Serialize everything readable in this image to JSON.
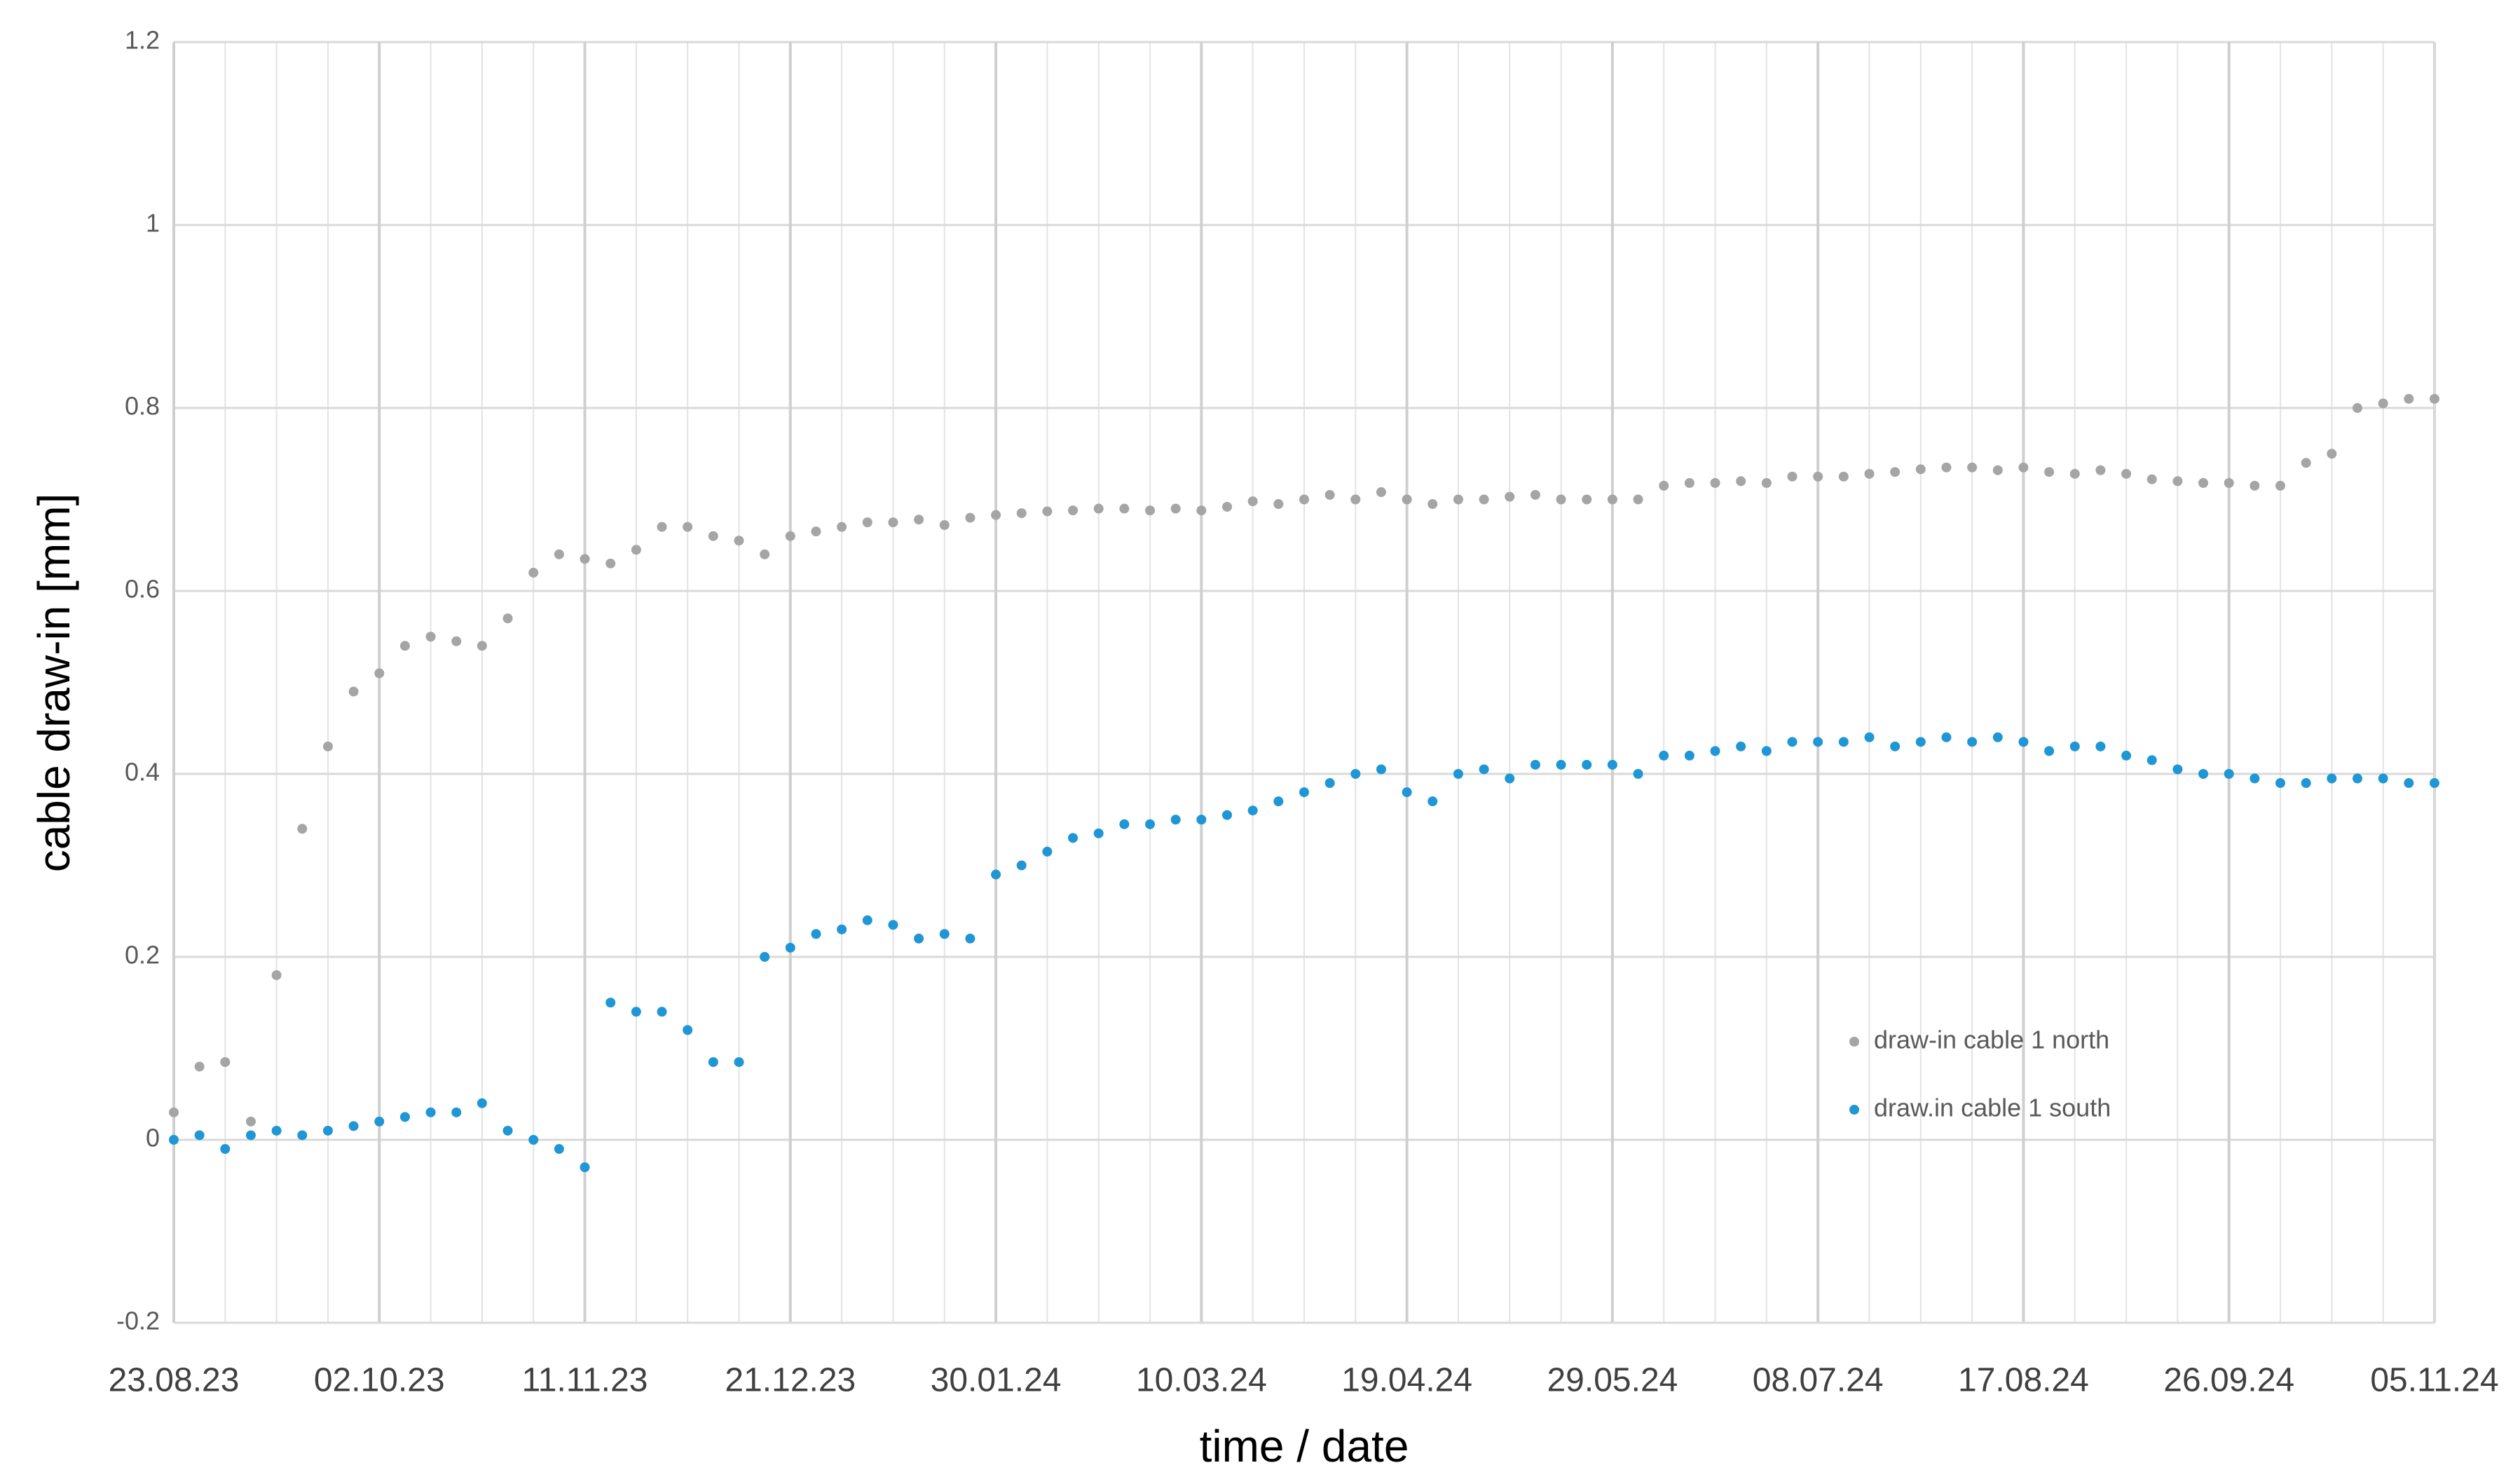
{
  "chart_data": {
    "type": "scatter",
    "x_label": "time / date",
    "y_label": "cable draw-in [mm]",
    "x": [
      "2023-08-23",
      "2023-08-28",
      "2023-09-02",
      "2023-09-07",
      "2023-09-12",
      "2023-09-17",
      "2023-09-22",
      "2023-09-27",
      "2023-10-02",
      "2023-10-07",
      "2023-10-12",
      "2023-10-17",
      "2023-10-22",
      "2023-10-27",
      "2023-11-01",
      "2023-11-06",
      "2023-11-11",
      "2023-11-16",
      "2023-11-21",
      "2023-11-26",
      "2023-12-01",
      "2023-12-06",
      "2023-12-11",
      "2023-12-16",
      "2023-12-21",
      "2023-12-26",
      "2023-12-31",
      "2024-01-05",
      "2024-01-10",
      "2024-01-15",
      "2024-01-20",
      "2024-01-25",
      "2024-01-30",
      "2024-02-04",
      "2024-02-09",
      "2024-02-14",
      "2024-02-19",
      "2024-02-24",
      "2024-02-29",
      "2024-03-05",
      "2024-03-10",
      "2024-03-15",
      "2024-03-20",
      "2024-03-25",
      "2024-03-30",
      "2024-04-04",
      "2024-04-09",
      "2024-04-14",
      "2024-04-19",
      "2024-04-24",
      "2024-04-29",
      "2024-05-04",
      "2024-05-09",
      "2024-05-14",
      "2024-05-19",
      "2024-05-24",
      "2024-05-29",
      "2024-06-03",
      "2024-06-08",
      "2024-06-13",
      "2024-06-18",
      "2024-06-23",
      "2024-06-28",
      "2024-07-03",
      "2024-07-08",
      "2024-07-13",
      "2024-07-18",
      "2024-07-23",
      "2024-07-28",
      "2024-08-02",
      "2024-08-07",
      "2024-08-12",
      "2024-08-17",
      "2024-08-22",
      "2024-08-27",
      "2024-09-01",
      "2024-09-06",
      "2024-09-11",
      "2024-09-16",
      "2024-09-21",
      "2024-09-26",
      "2024-10-01",
      "2024-10-06",
      "2024-10-11",
      "2024-10-16",
      "2024-10-21",
      "2024-10-26",
      "2024-10-31",
      "2024-11-05"
    ],
    "series": [
      {
        "name": "draw-in cable 1 north",
        "color": "#a5a5a5",
        "values": [
          0.03,
          0.08,
          0.085,
          0.02,
          0.18,
          0.34,
          0.43,
          0.49,
          0.51,
          0.54,
          0.55,
          0.545,
          0.54,
          0.57,
          0.62,
          0.64,
          0.635,
          0.63,
          0.645,
          0.67,
          0.67,
          0.66,
          0.655,
          0.64,
          0.66,
          0.665,
          0.67,
          0.675,
          0.675,
          0.678,
          0.672,
          0.68,
          0.683,
          0.685,
          0.687,
          0.688,
          0.69,
          0.69,
          0.688,
          0.69,
          0.688,
          0.692,
          0.698,
          0.695,
          0.7,
          0.705,
          0.7,
          0.708,
          0.7,
          0.695,
          0.7,
          0.7,
          0.703,
          0.705,
          0.7,
          0.7,
          0.7,
          0.7,
          0.715,
          0.718,
          0.718,
          0.72,
          0.718,
          0.725,
          0.725,
          0.725,
          0.728,
          0.73,
          0.733,
          0.735,
          0.735,
          0.732,
          0.735,
          0.73,
          0.728,
          0.732,
          0.728,
          0.722,
          0.72,
          0.718,
          0.718,
          0.715,
          0.715,
          0.74,
          0.75,
          0.8,
          0.805,
          0.81,
          0.81
        ]
      },
      {
        "name": "draw.in cable 1 south",
        "color": "#1f96d6",
        "values": [
          0,
          0.005,
          -0.01,
          0.005,
          0.01,
          0.005,
          0.01,
          0.015,
          0.02,
          0.025,
          0.03,
          0.03,
          0.04,
          0.01,
          0,
          -0.01,
          -0.03,
          0.15,
          0.14,
          0.14,
          0.12,
          0.085,
          0.085,
          0.2,
          0.21,
          0.225,
          0.23,
          0.24,
          0.235,
          0.22,
          0.225,
          0.22,
          0.29,
          0.3,
          0.315,
          0.33,
          0.335,
          0.345,
          0.345,
          0.35,
          0.35,
          0.355,
          0.36,
          0.37,
          0.38,
          0.39,
          0.4,
          0.405,
          0.38,
          0.37,
          0.4,
          0.405,
          0.395,
          0.41,
          0.41,
          0.41,
          0.41,
          0.4,
          0.42,
          0.42,
          0.425,
          0.43,
          0.425,
          0.435,
          0.435,
          0.435,
          0.44,
          0.43,
          0.435,
          0.44,
          0.435,
          0.44,
          0.435,
          0.425,
          0.43,
          0.43,
          0.42,
          0.415,
          0.405,
          0.4,
          0.4,
          0.395,
          0.39,
          0.39,
          0.395,
          0.395,
          0.395,
          0.39,
          0.39
        ]
      }
    ],
    "xlim": [
      "2023-08-23",
      "2024-11-05"
    ],
    "xticks": [
      {
        "value": "2023-08-23",
        "label": "23.08.23"
      },
      {
        "value": "2023-10-02",
        "label": "02.10.23"
      },
      {
        "value": "2023-11-11",
        "label": "11.11.23"
      },
      {
        "value": "2023-12-21",
        "label": "21.12.23"
      },
      {
        "value": "2024-01-30",
        "label": "30.01.24"
      },
      {
        "value": "2024-03-10",
        "label": "10.03.24"
      },
      {
        "value": "2024-04-19",
        "label": "19.04.24"
      },
      {
        "value": "2024-05-29",
        "label": "29.05.24"
      },
      {
        "value": "2024-07-08",
        "label": "08.07.24"
      },
      {
        "value": "2024-08-17",
        "label": "17.08.24"
      },
      {
        "value": "2024-09-26",
        "label": "26.09.24"
      },
      {
        "value": "2024-11-05",
        "label": "05.11.24"
      }
    ],
    "ylim": [
      -0.2,
      1.2
    ],
    "yticks": [
      -0.2,
      0,
      0.2,
      0.4,
      0.6,
      0.8,
      1,
      1.2
    ],
    "grid": true,
    "legend": "right"
  }
}
